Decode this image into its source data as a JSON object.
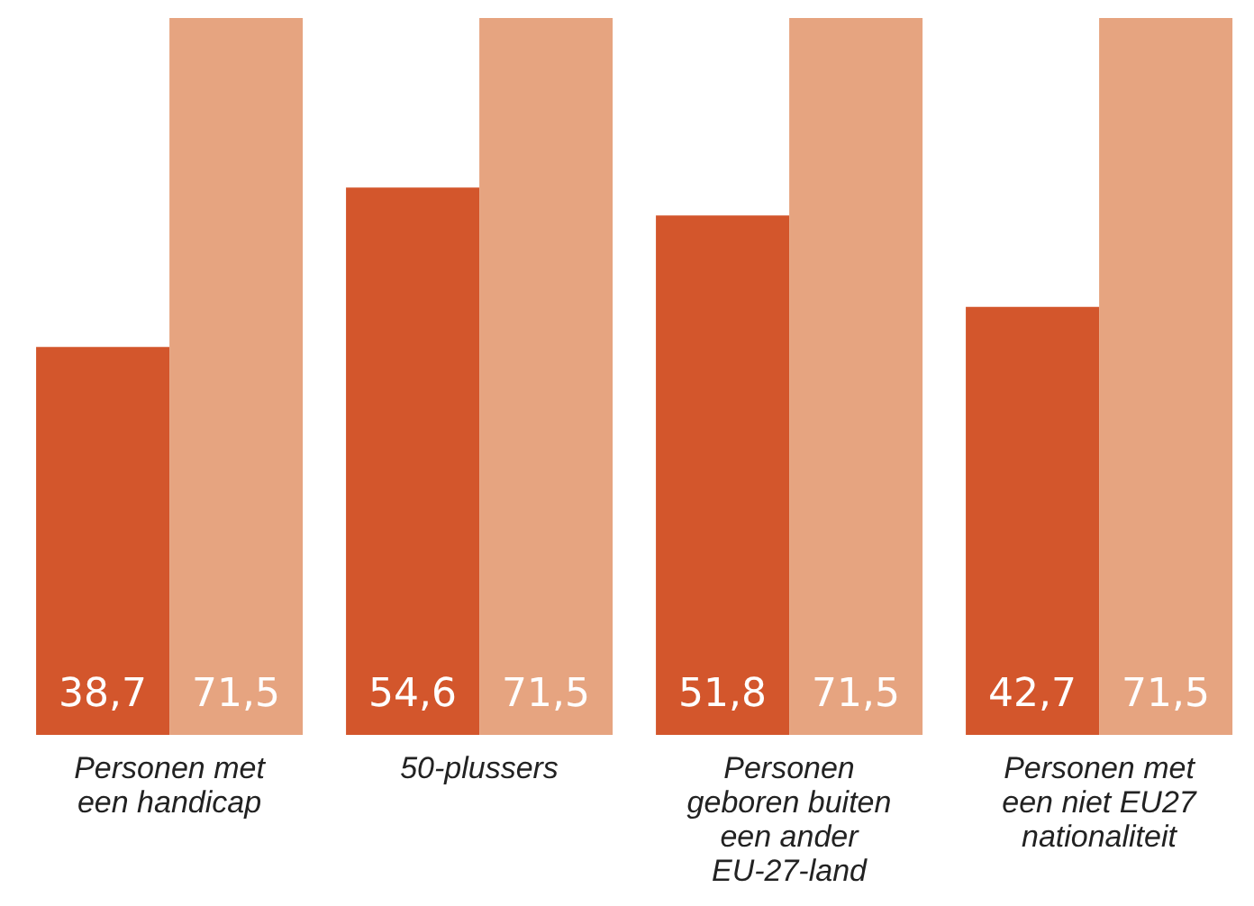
{
  "chart_data": {
    "type": "bar",
    "categories": [
      "Personen met een handicap",
      "50-plussers",
      "Personen geboren buiten een ander EU-27-land",
      "Personen met een niet EU27 nationaliteit"
    ],
    "series": [
      {
        "color": "#d3562c",
        "values": [
          38.7,
          54.6,
          51.8,
          42.7
        ],
        "value_labels": [
          "38,7",
          "54,6",
          "51,8",
          "42,7"
        ]
      },
      {
        "color": "#e6a480",
        "values": [
          71.5,
          71.5,
          71.5,
          71.5
        ],
        "value_labels": [
          "71,5",
          "71,5",
          "71,5",
          "71,5"
        ]
      }
    ],
    "grid": false,
    "legend": false
  }
}
